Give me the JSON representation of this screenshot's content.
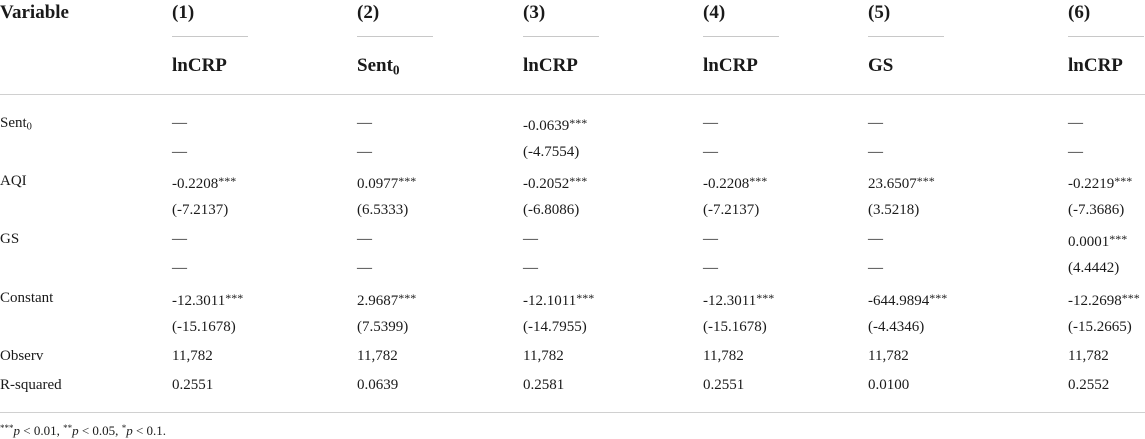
{
  "table": {
    "variable_header": "Variable",
    "model_numbers": [
      "(1)",
      "(2)",
      "(3)",
      "(4)",
      "(5)",
      "(6)"
    ],
    "dependent_vars": [
      {
        "base": "lnCRP",
        "sub": ""
      },
      {
        "base": "Sent",
        "sub": "0"
      },
      {
        "base": "lnCRP",
        "sub": ""
      },
      {
        "base": "lnCRP",
        "sub": ""
      },
      {
        "base": "GS",
        "sub": ""
      },
      {
        "base": "lnCRP",
        "sub": ""
      }
    ],
    "rows": [
      {
        "label": "Sent",
        "label_sub": "0",
        "cells": [
          {
            "v": "—",
            "s": ""
          },
          {
            "v": "—",
            "s": ""
          },
          {
            "v": "-0.0639",
            "s": "***"
          },
          {
            "v": "—",
            "s": ""
          },
          {
            "v": "—",
            "s": ""
          },
          {
            "v": "—",
            "s": ""
          }
        ]
      },
      {
        "label": "",
        "label_sub": "",
        "cells": [
          {
            "v": "—",
            "s": ""
          },
          {
            "v": "—",
            "s": ""
          },
          {
            "v": "(-4.7554)",
            "s": ""
          },
          {
            "v": "—",
            "s": ""
          },
          {
            "v": "—",
            "s": ""
          },
          {
            "v": "—",
            "s": ""
          }
        ]
      },
      {
        "label": "AQI",
        "label_sub": "",
        "cells": [
          {
            "v": "-0.2208",
            "s": "***"
          },
          {
            "v": "0.0977",
            "s": "***"
          },
          {
            "v": "-0.2052",
            "s": "***"
          },
          {
            "v": "-0.2208",
            "s": "***"
          },
          {
            "v": "23.6507",
            "s": "***"
          },
          {
            "v": "-0.2219",
            "s": "***"
          }
        ]
      },
      {
        "label": "",
        "label_sub": "",
        "cells": [
          {
            "v": "(-7.2137)",
            "s": ""
          },
          {
            "v": "(6.5333)",
            "s": ""
          },
          {
            "v": "(-6.8086)",
            "s": ""
          },
          {
            "v": "(-7.2137)",
            "s": ""
          },
          {
            "v": "(3.5218)",
            "s": ""
          },
          {
            "v": "(-7.3686)",
            "s": ""
          }
        ]
      },
      {
        "label": "GS",
        "label_sub": "",
        "cells": [
          {
            "v": "—",
            "s": ""
          },
          {
            "v": "—",
            "s": ""
          },
          {
            "v": "—",
            "s": ""
          },
          {
            "v": "—",
            "s": ""
          },
          {
            "v": "—",
            "s": ""
          },
          {
            "v": "0.0001",
            "s": "***"
          }
        ]
      },
      {
        "label": "",
        "label_sub": "",
        "cells": [
          {
            "v": "—",
            "s": ""
          },
          {
            "v": "—",
            "s": ""
          },
          {
            "v": "—",
            "s": ""
          },
          {
            "v": "—",
            "s": ""
          },
          {
            "v": "—",
            "s": ""
          },
          {
            "v": "(4.4442)",
            "s": ""
          }
        ]
      },
      {
        "label": "Constant",
        "label_sub": "",
        "cells": [
          {
            "v": "-12.3011",
            "s": "***"
          },
          {
            "v": "2.9687",
            "s": "***"
          },
          {
            "v": "-12.1011",
            "s": "***"
          },
          {
            "v": "-12.3011",
            "s": "***"
          },
          {
            "v": "-644.9894",
            "s": "***"
          },
          {
            "v": "-12.2698",
            "s": "***"
          }
        ]
      },
      {
        "label": "",
        "label_sub": "",
        "cells": [
          {
            "v": "(-15.1678)",
            "s": ""
          },
          {
            "v": "(7.5399)",
            "s": ""
          },
          {
            "v": "(-14.7955)",
            "s": ""
          },
          {
            "v": "(-15.1678)",
            "s": ""
          },
          {
            "v": "(-4.4346)",
            "s": ""
          },
          {
            "v": "(-15.2665)",
            "s": ""
          }
        ]
      },
      {
        "label": "Observ",
        "label_sub": "",
        "cells": [
          {
            "v": "11,782",
            "s": ""
          },
          {
            "v": "11,782",
            "s": ""
          },
          {
            "v": "11,782",
            "s": ""
          },
          {
            "v": "11,782",
            "s": ""
          },
          {
            "v": "11,782",
            "s": ""
          },
          {
            "v": "11,782",
            "s": ""
          }
        ]
      },
      {
        "label": "R-squared",
        "label_sub": "",
        "cells": [
          {
            "v": "0.2551",
            "s": ""
          },
          {
            "v": "0.0639",
            "s": ""
          },
          {
            "v": "0.2581",
            "s": ""
          },
          {
            "v": "0.2551",
            "s": ""
          },
          {
            "v": "0.0100",
            "s": ""
          },
          {
            "v": "0.2552",
            "s": ""
          }
        ]
      }
    ],
    "footnote": [
      {
        "stars": "***",
        "p": "p",
        "rest": " < 0.01, "
      },
      {
        "stars": "**",
        "p": "p",
        "rest": " < 0.05, "
      },
      {
        "stars": "*",
        "p": "p",
        "rest": " < 0.1."
      }
    ]
  }
}
